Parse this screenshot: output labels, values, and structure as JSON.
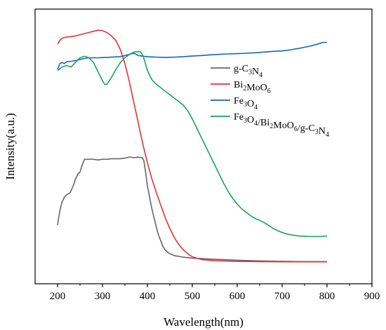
{
  "chart_data": {
    "type": "line",
    "xlabel": "Wavelength(nm)",
    "ylabel": "Intensity(a.u.)",
    "xlim": [
      150,
      900
    ],
    "ylim": [
      0,
      1
    ],
    "x_ticks": [
      200,
      300,
      400,
      500,
      600,
      700,
      800,
      900
    ],
    "y_ticks_labeled": false,
    "grid": false,
    "legend_position": "top-right",
    "series": [
      {
        "name": "g-C3N4",
        "legend_parts": [
          [
            "g-C",
            "n"
          ],
          [
            "3",
            "sub"
          ],
          [
            "N",
            "n"
          ],
          [
            "4",
            "sub"
          ]
        ],
        "color": "#666666",
        "points": [
          [
            200,
            0.17
          ],
          [
            205,
            0.23
          ],
          [
            210,
            0.27
          ],
          [
            215,
            0.29
          ],
          [
            220,
            0.3
          ],
          [
            228,
            0.31
          ],
          [
            235,
            0.34
          ],
          [
            240,
            0.37
          ],
          [
            245,
            0.39
          ],
          [
            250,
            0.4
          ],
          [
            255,
            0.43
          ],
          [
            260,
            0.455
          ],
          [
            270,
            0.455
          ],
          [
            280,
            0.455
          ],
          [
            290,
            0.452
          ],
          [
            300,
            0.455
          ],
          [
            310,
            0.455
          ],
          [
            320,
            0.457
          ],
          [
            330,
            0.457
          ],
          [
            340,
            0.457
          ],
          [
            350,
            0.46
          ],
          [
            360,
            0.465
          ],
          [
            370,
            0.462
          ],
          [
            380,
            0.464
          ],
          [
            388,
            0.462
          ],
          [
            392,
            0.45
          ],
          [
            396,
            0.4
          ],
          [
            400,
            0.34
          ],
          [
            405,
            0.29
          ],
          [
            410,
            0.24
          ],
          [
            415,
            0.2
          ],
          [
            420,
            0.16
          ],
          [
            425,
            0.125
          ],
          [
            430,
            0.1
          ],
          [
            435,
            0.075
          ],
          [
            440,
            0.06
          ],
          [
            450,
            0.045
          ],
          [
            460,
            0.037
          ],
          [
            480,
            0.03
          ],
          [
            500,
            0.026
          ],
          [
            550,
            0.021
          ],
          [
            600,
            0.017
          ],
          [
            650,
            0.014
          ],
          [
            700,
            0.012
          ],
          [
            750,
            0.011
          ],
          [
            800,
            0.011
          ]
        ]
      },
      {
        "name": "Bi2MoO6",
        "legend_parts": [
          [
            "Bi",
            "n"
          ],
          [
            "2",
            "sub"
          ],
          [
            "MoO",
            "n"
          ],
          [
            "6",
            "sub"
          ]
        ],
        "color": "#e8312f",
        "points": [
          [
            200,
            0.955
          ],
          [
            205,
            0.97
          ],
          [
            210,
            0.98
          ],
          [
            220,
            0.985
          ],
          [
            230,
            0.987
          ],
          [
            240,
            0.99
          ],
          [
            250,
            0.995
          ],
          [
            260,
            1.0
          ],
          [
            270,
            1.005
          ],
          [
            280,
            1.01
          ],
          [
            290,
            1.015
          ],
          [
            300,
            1.013
          ],
          [
            310,
            1.005
          ],
          [
            320,
            0.99
          ],
          [
            330,
            0.97
          ],
          [
            340,
            0.93
          ],
          [
            350,
            0.87
          ],
          [
            360,
            0.79
          ],
          [
            370,
            0.7
          ],
          [
            380,
            0.61
          ],
          [
            390,
            0.52
          ],
          [
            400,
            0.44
          ],
          [
            410,
            0.37
          ],
          [
            420,
            0.31
          ],
          [
            430,
            0.255
          ],
          [
            440,
            0.2
          ],
          [
            450,
            0.155
          ],
          [
            460,
            0.115
          ],
          [
            470,
            0.085
          ],
          [
            480,
            0.062
          ],
          [
            490,
            0.045
          ],
          [
            500,
            0.032
          ],
          [
            520,
            0.02
          ],
          [
            550,
            0.015
          ],
          [
            600,
            0.012
          ],
          [
            650,
            0.011
          ],
          [
            700,
            0.01
          ],
          [
            750,
            0.01
          ],
          [
            800,
            0.01
          ]
        ]
      },
      {
        "name": "Fe3O4",
        "legend_parts": [
          [
            "Fe",
            "n"
          ],
          [
            "3",
            "sub"
          ],
          [
            "O",
            "n"
          ],
          [
            "4",
            "sub"
          ]
        ],
        "color": "#1565c0",
        "points": [
          [
            200,
            0.845
          ],
          [
            205,
            0.87
          ],
          [
            210,
            0.875
          ],
          [
            215,
            0.87
          ],
          [
            220,
            0.878
          ],
          [
            230,
            0.88
          ],
          [
            240,
            0.883
          ],
          [
            250,
            0.888
          ],
          [
            260,
            0.892
          ],
          [
            270,
            0.895
          ],
          [
            280,
            0.895
          ],
          [
            290,
            0.895
          ],
          [
            300,
            0.896
          ],
          [
            310,
            0.897
          ],
          [
            320,
            0.898
          ],
          [
            330,
            0.899
          ],
          [
            340,
            0.9
          ],
          [
            350,
            0.905
          ],
          [
            360,
            0.91
          ],
          [
            370,
            0.915
          ],
          [
            380,
            0.905
          ],
          [
            390,
            0.902
          ],
          [
            400,
            0.9
          ],
          [
            420,
            0.898
          ],
          [
            440,
            0.897
          ],
          [
            460,
            0.898
          ],
          [
            480,
            0.9
          ],
          [
            500,
            0.903
          ],
          [
            520,
            0.905
          ],
          [
            540,
            0.908
          ],
          [
            560,
            0.91
          ],
          [
            580,
            0.912
          ],
          [
            600,
            0.913
          ],
          [
            620,
            0.915
          ],
          [
            640,
            0.917
          ],
          [
            660,
            0.92
          ],
          [
            680,
            0.923
          ],
          [
            700,
            0.925
          ],
          [
            720,
            0.93
          ],
          [
            740,
            0.937
          ],
          [
            760,
            0.945
          ],
          [
            780,
            0.955
          ],
          [
            790,
            0.962
          ],
          [
            800,
            0.962
          ]
        ]
      },
      {
        "name": "Fe3O4/Bi2MoO6/g-C3N4",
        "legend_parts": [
          [
            "Fe",
            "n"
          ],
          [
            "3",
            "sub"
          ],
          [
            "O",
            "n"
          ],
          [
            "4",
            "sub"
          ],
          [
            "/Bi",
            "n"
          ],
          [
            "2",
            "sub"
          ],
          [
            "MoO",
            "n"
          ],
          [
            "6",
            "sub"
          ],
          [
            "/g-C",
            "n"
          ],
          [
            "3",
            "sub"
          ],
          [
            "N",
            "n"
          ],
          [
            "4",
            "sub"
          ]
        ],
        "color": "#18a557",
        "points": [
          [
            200,
            0.84
          ],
          [
            210,
            0.855
          ],
          [
            220,
            0.862
          ],
          [
            230,
            0.855
          ],
          [
            240,
            0.875
          ],
          [
            250,
            0.895
          ],
          [
            260,
            0.902
          ],
          [
            270,
            0.895
          ],
          [
            280,
            0.875
          ],
          [
            290,
            0.835
          ],
          [
            300,
            0.795
          ],
          [
            305,
            0.78
          ],
          [
            310,
            0.78
          ],
          [
            320,
            0.81
          ],
          [
            330,
            0.845
          ],
          [
            340,
            0.875
          ],
          [
            350,
            0.895
          ],
          [
            360,
            0.91
          ],
          [
            370,
            0.92
          ],
          [
            380,
            0.922
          ],
          [
            385,
            0.92
          ],
          [
            390,
            0.905
          ],
          [
            395,
            0.875
          ],
          [
            400,
            0.84
          ],
          [
            410,
            0.8
          ],
          [
            420,
            0.78
          ],
          [
            430,
            0.765
          ],
          [
            440,
            0.75
          ],
          [
            450,
            0.735
          ],
          [
            460,
            0.72
          ],
          [
            470,
            0.705
          ],
          [
            480,
            0.69
          ],
          [
            490,
            0.665
          ],
          [
            500,
            0.63
          ],
          [
            510,
            0.59
          ],
          [
            520,
            0.55
          ],
          [
            530,
            0.51
          ],
          [
            540,
            0.47
          ],
          [
            550,
            0.43
          ],
          [
            560,
            0.39
          ],
          [
            570,
            0.35
          ],
          [
            580,
            0.315
          ],
          [
            590,
            0.285
          ],
          [
            600,
            0.26
          ],
          [
            610,
            0.24
          ],
          [
            620,
            0.225
          ],
          [
            630,
            0.21
          ],
          [
            640,
            0.198
          ],
          [
            650,
            0.19
          ],
          [
            660,
            0.18
          ],
          [
            670,
            0.168
          ],
          [
            680,
            0.155
          ],
          [
            690,
            0.145
          ],
          [
            700,
            0.137
          ],
          [
            710,
            0.131
          ],
          [
            720,
            0.127
          ],
          [
            730,
            0.124
          ],
          [
            740,
            0.122
          ],
          [
            750,
            0.121
          ],
          [
            760,
            0.12
          ],
          [
            780,
            0.12
          ],
          [
            800,
            0.122
          ]
        ]
      }
    ]
  }
}
